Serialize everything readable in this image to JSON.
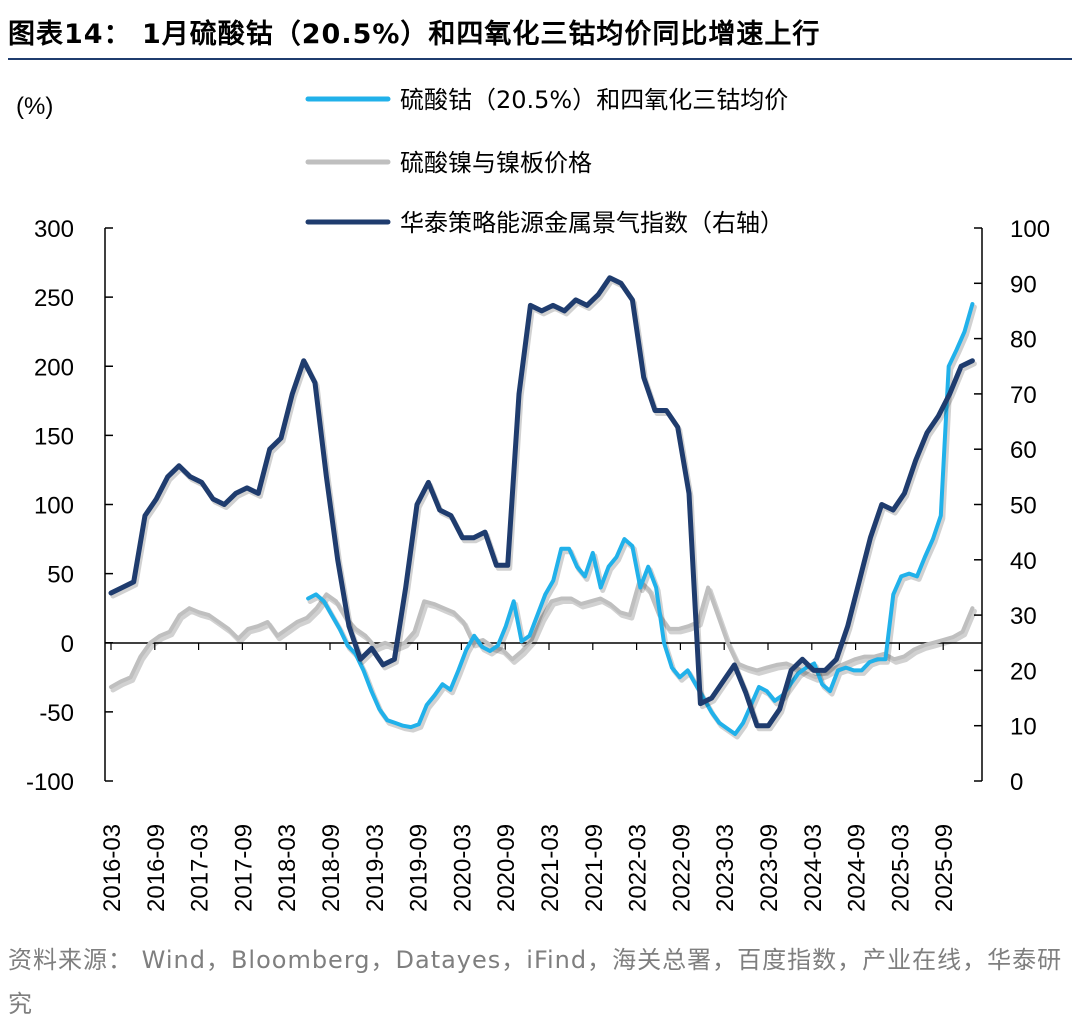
{
  "title": "图表14： 1月硫酸钴（20.5%）和四氧化三钴均价同比增速上行",
  "source": "资料来源： Wind，Bloomberg，Datayes，iFind，海关总署，百度指数，产业在线，华泰研究",
  "chart_data": {
    "type": "line",
    "unit_label": "(%)",
    "y_left": {
      "min": -100,
      "max": 300,
      "ticks": [
        "300",
        "250",
        "200",
        "150",
        "100",
        "50",
        "0",
        "-50",
        "-100"
      ]
    },
    "y_right": {
      "min": 0,
      "max": 100,
      "ticks": [
        "100",
        "90",
        "80",
        "70",
        "60",
        "50",
        "40",
        "30",
        "20",
        "10",
        "0"
      ]
    },
    "x_start": "2016-03",
    "x_ticks": [
      "2016-03",
      "2016-09",
      "2017-03",
      "2017-09",
      "2018-03",
      "2018-09",
      "2019-03",
      "2019-09",
      "2020-03",
      "2020-09",
      "2021-03",
      "2021-09",
      "2022-03",
      "2022-09",
      "2023-03",
      "2023-09",
      "2024-03",
      "2024-09",
      "2025-03",
      "2025-09"
    ],
    "series": [
      {
        "name": "硫酸钴（20.5%）和四氧化三钴均价",
        "axis": "left",
        "color": "#21b1ea",
        "start_index": 27,
        "values": [
          32,
          35,
          30,
          20,
          10,
          -2,
          -8,
          -20,
          -35,
          -48,
          -56,
          -58,
          -60,
          -61,
          -59,
          -45,
          -38,
          -30,
          -34,
          -20,
          -5,
          5,
          -3,
          -6,
          -2,
          12,
          30,
          1,
          5,
          20,
          35,
          45,
          68,
          68,
          55,
          48,
          65,
          40,
          55,
          62,
          75,
          70,
          40,
          55,
          40,
          0,
          -18,
          -25,
          -20,
          -30,
          -40,
          -50,
          -58,
          -62,
          -66,
          -58,
          -45,
          -32,
          -35,
          -42,
          -38,
          -30,
          -22,
          -18,
          -15,
          -30,
          -35,
          -20,
          -18,
          -20,
          -20,
          -14,
          -12,
          -12,
          35,
          48,
          50,
          48,
          62,
          75,
          92,
          200,
          212,
          225,
          245
        ]
      },
      {
        "name": "硫酸镍与镍板价格",
        "axis": "left",
        "color": "#bfbfbf",
        "start_index": 0,
        "values": [
          -32,
          -28,
          -25,
          -10,
          0,
          5,
          8,
          20,
          25,
          22,
          20,
          15,
          10,
          3,
          10,
          12,
          15,
          5,
          10,
          15,
          18,
          25,
          35,
          30,
          18,
          10,
          5,
          -3,
          0,
          -3,
          0,
          8,
          30,
          28,
          25,
          22,
          15,
          0,
          2,
          -3,
          -5,
          -12,
          -6,
          2,
          18,
          30,
          32,
          32,
          28,
          30,
          32,
          28,
          22,
          20,
          45,
          38,
          20,
          10,
          10,
          12,
          15,
          40,
          20,
          0,
          -15,
          -18,
          -20,
          -18,
          -16,
          -15,
          -18,
          -22,
          -25,
          -22,
          -18,
          -15,
          -12,
          -10,
          -10,
          -8,
          -12,
          -10,
          -5,
          -2,
          0,
          2,
          4,
          8,
          25
        ]
      },
      {
        "name": "华泰策略能源金属景气指数（右轴）",
        "axis": "right",
        "color": "#1f3c6e",
        "start_index": 0,
        "values": [
          34,
          35,
          36,
          48,
          51,
          55,
          57,
          55,
          54,
          51,
          50,
          52,
          53,
          52,
          60,
          62,
          70,
          76,
          72,
          55,
          40,
          28,
          22,
          24,
          21,
          22,
          35,
          50,
          54,
          49,
          48,
          44,
          44,
          45,
          39,
          39,
          70,
          86,
          85,
          86,
          85,
          87,
          86,
          88,
          91,
          90,
          87,
          73,
          67,
          67,
          64,
          52,
          14,
          15,
          18,
          21,
          16,
          10,
          10,
          13,
          20,
          22,
          20,
          20,
          22,
          28,
          36,
          44,
          50,
          49,
          52,
          58,
          63,
          66,
          70,
          75,
          76
        ]
      }
    ]
  }
}
